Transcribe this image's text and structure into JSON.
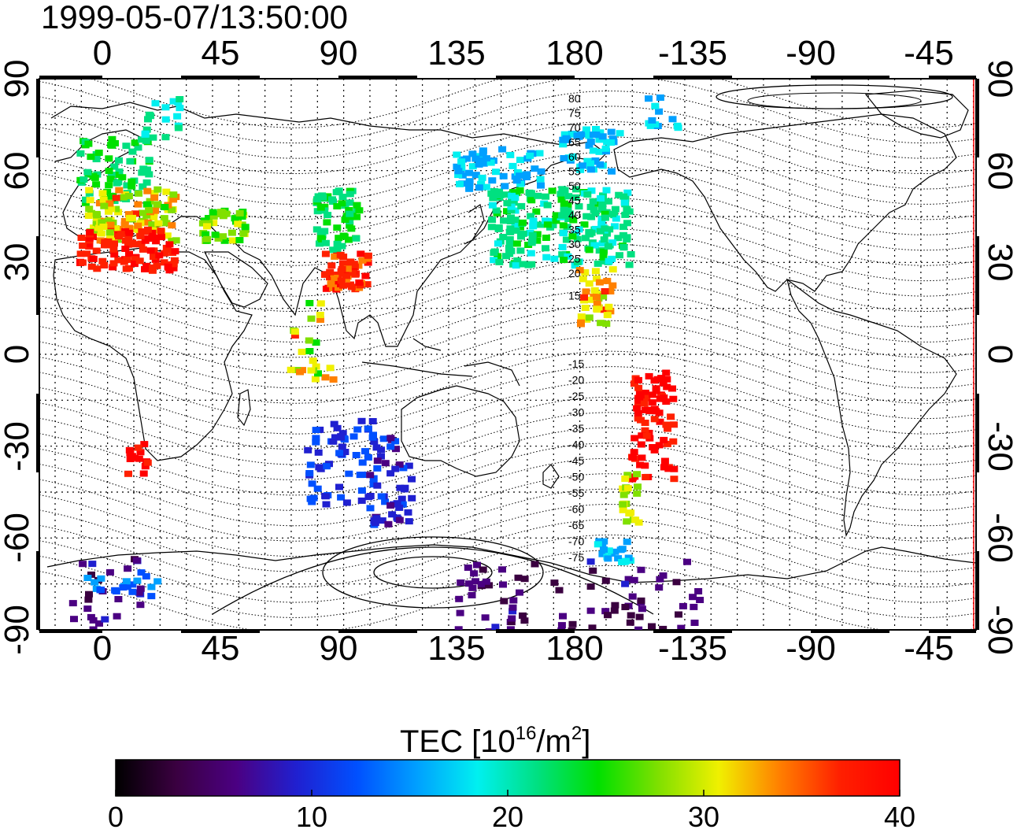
{
  "title": "1999-05-07/13:50:00",
  "axes": {
    "top_ticks": [
      "0",
      "45",
      "90",
      "135",
      "180",
      "-135",
      "-90",
      "-45"
    ],
    "bottom_ticks": [
      "0",
      "45",
      "90",
      "135",
      "180",
      "-135",
      "-90",
      "-45"
    ],
    "left_ticks": [
      "90",
      "60",
      "30",
      "0",
      "-30",
      "-60",
      "-90"
    ],
    "right_ticks": [
      "90",
      "60",
      "30",
      "0",
      "-30",
      "-60",
      "-90"
    ]
  },
  "contour_labels": {
    "north": [
      "80",
      "75",
      "70",
      "65",
      "60",
      "55",
      "50",
      "45",
      "40",
      "35",
      "30",
      "25",
      "20",
      "15"
    ],
    "south": [
      "-15",
      "-20",
      "-25",
      "-30",
      "-35",
      "-40",
      "-45",
      "-50",
      "-55",
      "-60",
      "-65",
      "-70",
      "-75"
    ]
  },
  "colorbar": {
    "title_prefix": "TEC  [10",
    "title_sup1": "16",
    "title_mid": "/m",
    "title_sup2": "2",
    "title_suffix": "]",
    "ticks": [
      "0",
      "10",
      "20",
      "30",
      "40"
    ],
    "min": 0,
    "max": 40
  },
  "colors": {
    "colormap": [
      "#000000",
      "#3a0040",
      "#4b0082",
      "#2020d0",
      "#0050ff",
      "#00a0ff",
      "#00f0f0",
      "#00e080",
      "#00e000",
      "#80e000",
      "#f0f000",
      "#ff8000",
      "#ff2000",
      "#ff0000"
    ]
  }
}
